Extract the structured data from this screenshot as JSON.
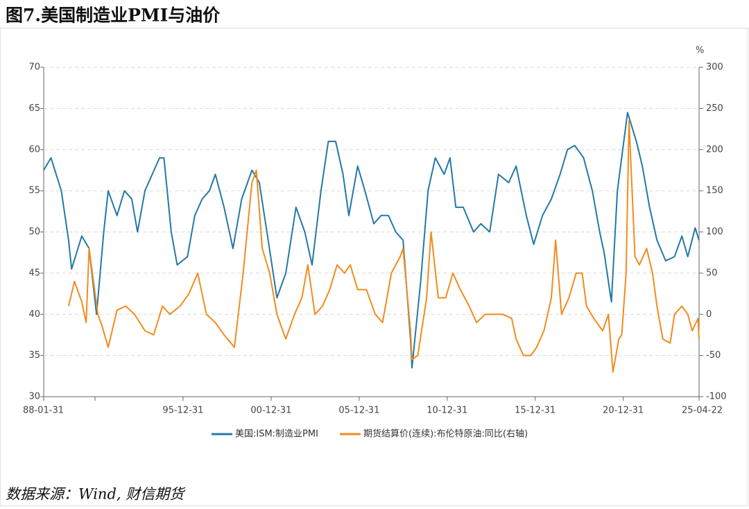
{
  "chart_data": {
    "type": "line",
    "title": "图7.美国制造业PMI与油价",
    "source": "数据来源：Wind, 财信期货",
    "y2_unit": "%",
    "xlim": [
      "1988-01-31",
      "2025-04-22"
    ],
    "xticks": [
      {
        "value": "1988-01-31",
        "label": "88-01-31"
      },
      {
        "value": "1990-12-31",
        "label": null
      },
      {
        "value": "1995-12-31",
        "label": "95-12-31"
      },
      {
        "value": "2000-12-31",
        "label": "00-12-31"
      },
      {
        "value": "2005-12-31",
        "label": "05-12-31"
      },
      {
        "value": "2010-12-31",
        "label": "10-12-31"
      },
      {
        "value": "2015-12-31",
        "label": "15-12-31"
      },
      {
        "value": "2020-12-31",
        "label": "20-12-31"
      },
      {
        "value": "2025-04-22",
        "label": "25-04-22"
      }
    ],
    "ylim": [
      30,
      70
    ],
    "yticks": [
      30,
      35,
      40,
      45,
      50,
      55,
      60,
      65,
      70
    ],
    "y2lim": [
      -100,
      300
    ],
    "y2ticks": [
      -100,
      -50,
      0,
      50,
      100,
      150,
      200,
      250,
      300
    ],
    "grid": true,
    "series": [
      {
        "name": "美国:ISM:制造业PMI",
        "color": "#2378a6",
        "x": [
          "1988-01-31",
          "1988-06-30",
          "1989-01-31",
          "1989-06-30",
          "1989-08-31",
          "1990-03-31",
          "1990-08-31",
          "1991-01-31",
          "1991-06-30",
          "1991-09-30",
          "1992-03-31",
          "1992-08-31",
          "1993-01-31",
          "1993-05-31",
          "1993-10-31",
          "1994-03-31",
          "1994-08-31",
          "1994-11-30",
          "1995-04-30",
          "1995-08-31",
          "1996-03-31",
          "1996-08-31",
          "1997-01-31",
          "1997-06-30",
          "1997-10-31",
          "1998-04-30",
          "1998-10-31",
          "1999-04-30",
          "1999-11-30",
          "2000-04-30",
          "2000-10-31",
          "2001-04-30",
          "2001-10-31",
          "2002-05-31",
          "2002-11-30",
          "2003-04-30",
          "2003-10-31",
          "2004-03-31",
          "2004-08-31",
          "2005-01-31",
          "2005-05-31",
          "2005-11-30",
          "2006-04-30",
          "2006-10-31",
          "2007-03-31",
          "2007-08-31",
          "2008-01-31",
          "2008-06-30",
          "2008-11-30",
          "2008-12-31",
          "2009-06-30",
          "2009-11-30",
          "2010-04-30",
          "2010-10-31",
          "2011-02-28",
          "2011-06-30",
          "2011-11-30",
          "2012-06-30",
          "2012-11-30",
          "2013-05-31",
          "2013-11-30",
          "2014-06-30",
          "2014-11-30",
          "2015-06-30",
          "2015-11-30",
          "2016-05-31",
          "2016-11-30",
          "2017-05-31",
          "2017-10-31",
          "2018-03-31",
          "2018-09-30",
          "2019-03-31",
          "2019-08-31",
          "2019-11-30",
          "2020-04-30",
          "2020-08-31",
          "2020-12-31",
          "2021-03-31",
          "2021-09-30",
          "2022-01-31",
          "2022-06-30",
          "2022-11-30",
          "2023-05-31",
          "2023-11-30",
          "2024-04-30",
          "2024-08-31",
          "2025-01-31",
          "2025-04-22"
        ],
        "values": [
          57.5,
          59,
          55,
          49,
          45.5,
          49.5,
          48,
          40,
          50,
          55,
          52,
          55,
          54,
          50,
          55,
          57,
          59,
          59,
          50,
          46,
          47,
          52,
          54,
          55,
          57,
          53,
          48,
          54,
          57.5,
          56,
          49,
          42,
          45,
          53,
          50,
          46,
          55,
          61,
          61,
          57,
          52,
          58,
          55,
          51,
          52,
          52,
          50,
          49,
          37,
          33.5,
          44,
          55,
          59,
          57,
          59,
          53,
          53,
          50,
          51,
          50,
          57,
          56,
          58,
          52,
          48.5,
          52,
          54,
          57,
          60,
          60.5,
          59,
          55,
          50,
          47.5,
          41.5,
          55,
          60.5,
          64.5,
          61,
          58,
          53,
          49,
          46.5,
          47,
          49.5,
          47,
          50.5,
          49
        ]
      },
      {
        "name": "期货结算价(连续):布伦特原油:同比(右轴)",
        "color": "#f28b1d",
        "axis": "y2",
        "x": [
          "1989-06-30",
          "1989-10-31",
          "1990-03-31",
          "1990-06-30",
          "1990-08-31",
          "1991-02-28",
          "1991-05-31",
          "1991-09-30",
          "1992-03-31",
          "1992-09-30",
          "1993-03-31",
          "1993-10-31",
          "1994-04-30",
          "1994-10-31",
          "1995-03-31",
          "1995-10-31",
          "1996-04-30",
          "1996-10-31",
          "1997-04-30",
          "1997-10-31",
          "1998-04-30",
          "1998-11-30",
          "1999-05-31",
          "1999-11-30",
          "2000-02-28",
          "2000-06-30",
          "2000-11-30",
          "2001-04-30",
          "2001-10-31",
          "2002-04-30",
          "2002-09-30",
          "2003-01-31",
          "2003-06-30",
          "2003-11-30",
          "2004-04-30",
          "2004-09-30",
          "2005-02-28",
          "2005-06-30",
          "2005-11-30",
          "2006-05-31",
          "2006-11-30",
          "2007-04-30",
          "2007-10-31",
          "2008-04-30",
          "2008-06-30",
          "2008-11-30",
          "2008-12-31",
          "2009-04-30",
          "2009-10-31",
          "2010-01-31",
          "2010-06-30",
          "2010-11-30",
          "2011-04-30",
          "2011-09-30",
          "2012-03-31",
          "2012-08-31",
          "2013-02-28",
          "2013-08-31",
          "2014-02-28",
          "2014-08-31",
          "2014-11-30",
          "2015-04-30",
          "2015-09-30",
          "2016-01-31",
          "2016-06-30",
          "2016-11-30",
          "2017-02-28",
          "2017-06-30",
          "2017-11-30",
          "2018-04-30",
          "2018-08-31",
          "2018-11-30",
          "2019-04-30",
          "2019-10-31",
          "2020-02-28",
          "2020-05-31",
          "2020-09-30",
          "2020-11-30",
          "2021-02-28",
          "2021-04-30",
          "2021-08-31",
          "2021-11-30",
          "2022-04-30",
          "2022-08-31",
          "2022-11-30",
          "2023-03-31",
          "2023-08-31",
          "2023-11-30",
          "2024-04-30",
          "2024-08-31",
          "2024-11-30",
          "2025-03-31",
          "2025-04-22"
        ],
        "values": [
          10,
          40,
          15,
          -10,
          80,
          0,
          -15,
          -40,
          5,
          10,
          0,
          -20,
          -25,
          10,
          0,
          10,
          25,
          50,
          0,
          -10,
          -25,
          -40,
          50,
          160,
          175,
          80,
          50,
          0,
          -30,
          0,
          20,
          60,
          0,
          10,
          30,
          60,
          50,
          60,
          30,
          30,
          0,
          -10,
          50,
          70,
          80,
          -20,
          -55,
          -50,
          20,
          100,
          20,
          20,
          50,
          30,
          10,
          -10,
          0,
          0,
          0,
          -5,
          -30,
          -50,
          -50,
          -40,
          -20,
          20,
          90,
          0,
          20,
          50,
          50,
          10,
          -5,
          -20,
          0,
          -70,
          -30,
          -25,
          50,
          235,
          70,
          60,
          80,
          50,
          10,
          -30,
          -35,
          0,
          10,
          0,
          -20,
          -5,
          -30
        ]
      }
    ]
  }
}
